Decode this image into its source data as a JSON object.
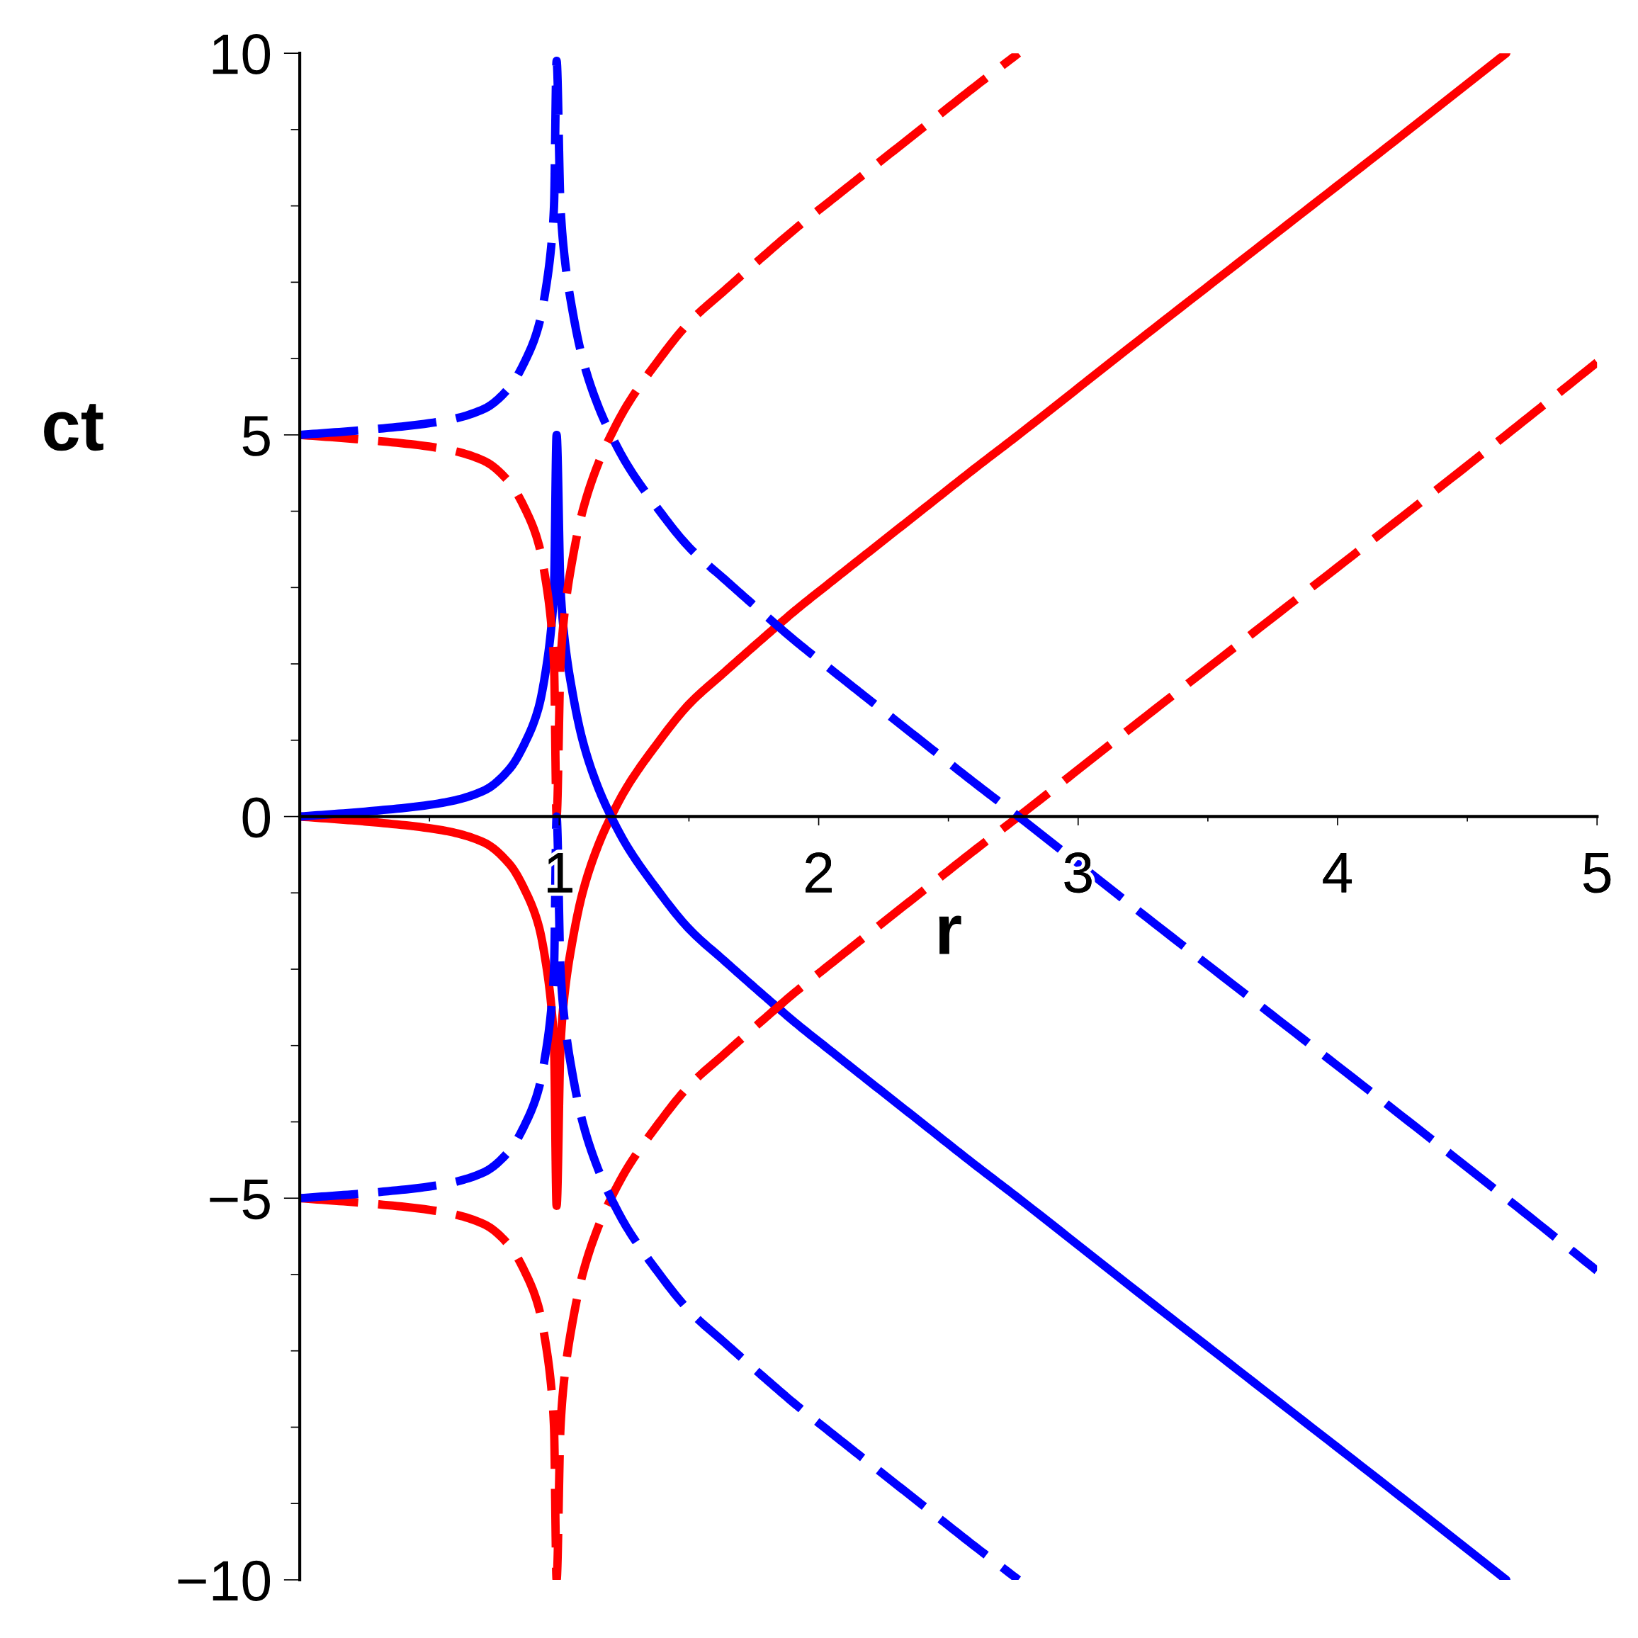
{
  "chart_data": {
    "type": "line",
    "xlabel": "r",
    "ylabel": "ct",
    "xlim": [
      0,
      5
    ],
    "ylim": [
      -10,
      10
    ],
    "xticks": [
      {
        "value": 0.5,
        "label": null
      },
      1,
      {
        "value": 1.5,
        "label": null
      },
      2,
      {
        "value": 2.5,
        "label": null
      },
      3,
      {
        "value": 3.5,
        "label": null
      },
      4,
      {
        "value": 4.5,
        "label": null
      },
      5
    ],
    "yticks": [
      {
        "value": -10,
        "label": "−10"
      },
      {
        "value": -9,
        "label": null
      },
      {
        "value": -8,
        "label": null
      },
      {
        "value": -7,
        "label": null
      },
      {
        "value": -6,
        "label": null
      },
      {
        "value": -5,
        "label": "−5"
      },
      {
        "value": -4,
        "label": null
      },
      {
        "value": -3,
        "label": null
      },
      {
        "value": -2,
        "label": null
      },
      {
        "value": -1,
        "label": null
      },
      0,
      {
        "value": 1,
        "label": null
      },
      {
        "value": 2,
        "label": null
      },
      {
        "value": 3,
        "label": null
      },
      {
        "value": 4,
        "label": null
      },
      5,
      {
        "value": 6,
        "label": null
      },
      {
        "value": 7,
        "label": null
      },
      {
        "value": 8,
        "label": null
      },
      {
        "value": 9,
        "label": null
      },
      10
    ],
    "series": [
      {
        "color": "#ff0000",
        "line_style": "solid",
        "x": [
          0,
          0.27,
          0.55,
          0.71,
          0.81,
          0.87,
          0.92,
          0.95,
          0.97,
          0.98,
          0.99,
          1.005,
          1.02,
          1.05,
          1.09,
          1.15,
          1.2,
          1.26,
          1.37,
          1.5,
          1.64,
          1.78,
          1.91,
          2.05,
          2.18,
          2.4,
          2.59,
          2.77,
          3.2,
          3.71,
          4.22,
          4.65
        ],
        "values": [
          0,
          -0.07,
          -0.18,
          -0.34,
          -0.63,
          -0.98,
          -1.42,
          -1.95,
          -2.5,
          -3.0,
          -5.1,
          -3.0,
          -2.35,
          -1.65,
          -1.0,
          -0.38,
          0,
          0.38,
          0.92,
          1.47,
          1.9,
          2.32,
          2.7,
          3.08,
          3.43,
          4.02,
          4.53,
          5.0,
          6.15,
          7.5,
          8.85,
          10.0
        ]
      },
      {
        "color": "#0000ff",
        "line_style": "solid",
        "x": [
          0,
          0.27,
          0.55,
          0.71,
          0.81,
          0.87,
          0.92,
          0.95,
          0.97,
          0.98,
          0.99,
          1.005,
          1.02,
          1.05,
          1.09,
          1.15,
          1.2,
          1.26,
          1.37,
          1.5,
          1.64,
          1.78,
          1.91,
          2.05,
          2.18,
          2.4,
          2.59,
          2.77,
          3.2,
          3.71,
          4.22,
          4.65
        ],
        "values": [
          0,
          0.07,
          0.18,
          0.34,
          0.63,
          0.98,
          1.42,
          1.95,
          2.5,
          3.0,
          5.0,
          3.0,
          2.35,
          1.65,
          1.0,
          0.38,
          0,
          -0.38,
          -0.92,
          -1.47,
          -1.9,
          -2.32,
          -2.7,
          -3.08,
          -3.43,
          -4.02,
          -4.53,
          -5.0,
          -6.15,
          -7.5,
          -8.85,
          -10.0
        ]
      },
      {
        "color": "#ff0000",
        "line_style": "dashed",
        "x": [
          0,
          0.27,
          0.55,
          0.71,
          0.81,
          0.87,
          0.92,
          0.95,
          0.97,
          0.98,
          0.99,
          1.005,
          1.02,
          1.05,
          1.09,
          1.15,
          1.2,
          1.26,
          1.37,
          1.5,
          1.64,
          1.78,
          1.91,
          2.05,
          2.18,
          2.4,
          2.59,
          2.77
        ],
        "values": [
          5,
          4.93,
          4.82,
          4.66,
          4.37,
          4.02,
          3.58,
          3.05,
          2.5,
          2.0,
          0.0,
          2.0,
          2.65,
          3.35,
          4.0,
          4.62,
          5.0,
          5.38,
          5.92,
          6.47,
          6.9,
          7.32,
          7.7,
          8.08,
          8.43,
          9.02,
          9.53,
          10.0
        ]
      },
      {
        "color": "#ff0000",
        "line_style": "dashed",
        "x": [
          0,
          0.27,
          0.55,
          0.71,
          0.81,
          0.87,
          0.92,
          0.95,
          0.97,
          0.98,
          0.99,
          1.005,
          1.02,
          1.05,
          1.09,
          1.15,
          1.2,
          1.26,
          1.37,
          1.5,
          1.64,
          1.78,
          1.91,
          2.05,
          2.18,
          2.4,
          2.59,
          2.77,
          3.2,
          3.71,
          4.22,
          4.65,
          5.0
        ],
        "values": [
          -5,
          -5.07,
          -5.18,
          -5.34,
          -5.63,
          -5.98,
          -6.42,
          -6.95,
          -7.5,
          -8.0,
          -10.0,
          -8.0,
          -7.35,
          -6.65,
          -6.0,
          -5.38,
          -5.0,
          -4.62,
          -4.08,
          -3.53,
          -3.1,
          -2.68,
          -2.3,
          -1.92,
          -1.57,
          -0.98,
          -0.47,
          0.0,
          1.15,
          2.5,
          3.85,
          5.0,
          5.95
        ]
      },
      {
        "color": "#0000ff",
        "line_style": "dashed",
        "x": [
          0,
          0.27,
          0.55,
          0.71,
          0.81,
          0.87,
          0.92,
          0.95,
          0.97,
          0.98,
          0.99,
          1.005,
          1.02,
          1.05,
          1.09,
          1.15,
          1.2,
          1.26,
          1.37,
          1.5,
          1.64,
          1.78,
          1.91,
          2.05,
          2.18,
          2.4,
          2.59,
          2.77,
          3.2,
          3.71,
          4.22,
          4.65,
          5.0
        ],
        "values": [
          5,
          5.07,
          5.18,
          5.34,
          5.63,
          5.98,
          6.42,
          6.95,
          7.5,
          8.0,
          9.9,
          8.0,
          7.35,
          6.65,
          6.0,
          5.38,
          5.0,
          4.62,
          4.08,
          3.53,
          3.1,
          2.68,
          2.3,
          1.92,
          1.57,
          0.98,
          0.47,
          0.0,
          -1.15,
          -2.5,
          -3.85,
          -5.0,
          -5.95
        ]
      },
      {
        "color": "#0000ff",
        "line_style": "dashed",
        "x": [
          0,
          0.27,
          0.55,
          0.71,
          0.81,
          0.87,
          0.92,
          0.95,
          0.97,
          0.98,
          0.99,
          1.005,
          1.02,
          1.05,
          1.09,
          1.15,
          1.2,
          1.26,
          1.37,
          1.5,
          1.64,
          1.78,
          1.91,
          2.05,
          2.18,
          2.4,
          2.59,
          2.77
        ],
        "values": [
          -5,
          -4.93,
          -4.82,
          -4.66,
          -4.37,
          -4.02,
          -3.58,
          -3.05,
          -2.5,
          -2.0,
          0.0,
          -2.0,
          -2.65,
          -3.35,
          -4.0,
          -4.62,
          -5.0,
          -5.38,
          -5.92,
          -6.47,
          -6.9,
          -7.32,
          -7.7,
          -8.08,
          -8.43,
          -9.02,
          -9.53,
          -10.0
        ]
      }
    ]
  }
}
